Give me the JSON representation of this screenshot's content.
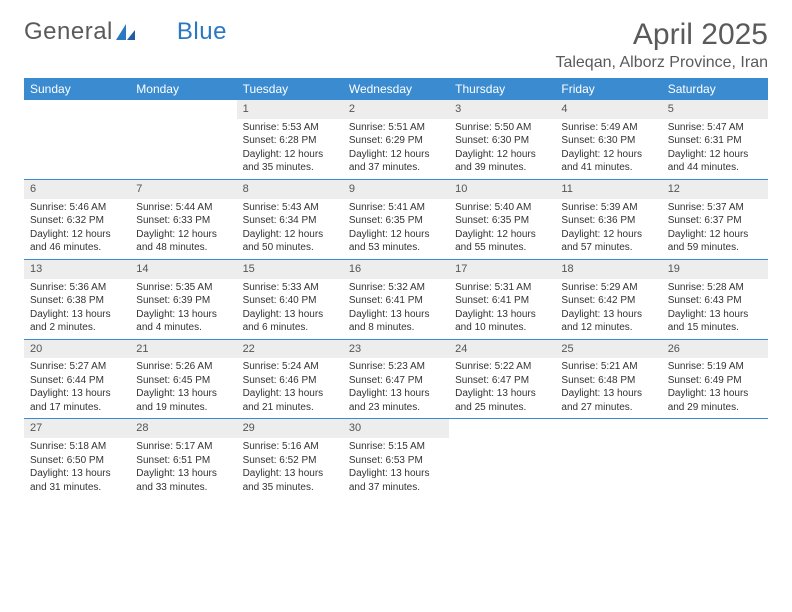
{
  "logo": {
    "text_general": "General",
    "text_blue": "Blue"
  },
  "title": "April 2025",
  "location": "Taleqan, Alborz Province, Iran",
  "colors": {
    "header_bg": "#3a8bd0",
    "header_text": "#ffffff",
    "daynum_bg": "#ededed",
    "row_border": "#3a8bd0",
    "body_text": "#333333",
    "title_text": "#5a5a5a",
    "logo_blue": "#2b78c2",
    "page_bg": "#ffffff"
  },
  "days_of_week": [
    "Sunday",
    "Monday",
    "Tuesday",
    "Wednesday",
    "Thursday",
    "Friday",
    "Saturday"
  ],
  "weeks": [
    [
      null,
      null,
      {
        "n": "1",
        "sr": "Sunrise: 5:53 AM",
        "ss": "Sunset: 6:28 PM",
        "dl1": "Daylight: 12 hours",
        "dl2": "and 35 minutes."
      },
      {
        "n": "2",
        "sr": "Sunrise: 5:51 AM",
        "ss": "Sunset: 6:29 PM",
        "dl1": "Daylight: 12 hours",
        "dl2": "and 37 minutes."
      },
      {
        "n": "3",
        "sr": "Sunrise: 5:50 AM",
        "ss": "Sunset: 6:30 PM",
        "dl1": "Daylight: 12 hours",
        "dl2": "and 39 minutes."
      },
      {
        "n": "4",
        "sr": "Sunrise: 5:49 AM",
        "ss": "Sunset: 6:30 PM",
        "dl1": "Daylight: 12 hours",
        "dl2": "and 41 minutes."
      },
      {
        "n": "5",
        "sr": "Sunrise: 5:47 AM",
        "ss": "Sunset: 6:31 PM",
        "dl1": "Daylight: 12 hours",
        "dl2": "and 44 minutes."
      }
    ],
    [
      {
        "n": "6",
        "sr": "Sunrise: 5:46 AM",
        "ss": "Sunset: 6:32 PM",
        "dl1": "Daylight: 12 hours",
        "dl2": "and 46 minutes."
      },
      {
        "n": "7",
        "sr": "Sunrise: 5:44 AM",
        "ss": "Sunset: 6:33 PM",
        "dl1": "Daylight: 12 hours",
        "dl2": "and 48 minutes."
      },
      {
        "n": "8",
        "sr": "Sunrise: 5:43 AM",
        "ss": "Sunset: 6:34 PM",
        "dl1": "Daylight: 12 hours",
        "dl2": "and 50 minutes."
      },
      {
        "n": "9",
        "sr": "Sunrise: 5:41 AM",
        "ss": "Sunset: 6:35 PM",
        "dl1": "Daylight: 12 hours",
        "dl2": "and 53 minutes."
      },
      {
        "n": "10",
        "sr": "Sunrise: 5:40 AM",
        "ss": "Sunset: 6:35 PM",
        "dl1": "Daylight: 12 hours",
        "dl2": "and 55 minutes."
      },
      {
        "n": "11",
        "sr": "Sunrise: 5:39 AM",
        "ss": "Sunset: 6:36 PM",
        "dl1": "Daylight: 12 hours",
        "dl2": "and 57 minutes."
      },
      {
        "n": "12",
        "sr": "Sunrise: 5:37 AM",
        "ss": "Sunset: 6:37 PM",
        "dl1": "Daylight: 12 hours",
        "dl2": "and 59 minutes."
      }
    ],
    [
      {
        "n": "13",
        "sr": "Sunrise: 5:36 AM",
        "ss": "Sunset: 6:38 PM",
        "dl1": "Daylight: 13 hours",
        "dl2": "and 2 minutes."
      },
      {
        "n": "14",
        "sr": "Sunrise: 5:35 AM",
        "ss": "Sunset: 6:39 PM",
        "dl1": "Daylight: 13 hours",
        "dl2": "and 4 minutes."
      },
      {
        "n": "15",
        "sr": "Sunrise: 5:33 AM",
        "ss": "Sunset: 6:40 PM",
        "dl1": "Daylight: 13 hours",
        "dl2": "and 6 minutes."
      },
      {
        "n": "16",
        "sr": "Sunrise: 5:32 AM",
        "ss": "Sunset: 6:41 PM",
        "dl1": "Daylight: 13 hours",
        "dl2": "and 8 minutes."
      },
      {
        "n": "17",
        "sr": "Sunrise: 5:31 AM",
        "ss": "Sunset: 6:41 PM",
        "dl1": "Daylight: 13 hours",
        "dl2": "and 10 minutes."
      },
      {
        "n": "18",
        "sr": "Sunrise: 5:29 AM",
        "ss": "Sunset: 6:42 PM",
        "dl1": "Daylight: 13 hours",
        "dl2": "and 12 minutes."
      },
      {
        "n": "19",
        "sr": "Sunrise: 5:28 AM",
        "ss": "Sunset: 6:43 PM",
        "dl1": "Daylight: 13 hours",
        "dl2": "and 15 minutes."
      }
    ],
    [
      {
        "n": "20",
        "sr": "Sunrise: 5:27 AM",
        "ss": "Sunset: 6:44 PM",
        "dl1": "Daylight: 13 hours",
        "dl2": "and 17 minutes."
      },
      {
        "n": "21",
        "sr": "Sunrise: 5:26 AM",
        "ss": "Sunset: 6:45 PM",
        "dl1": "Daylight: 13 hours",
        "dl2": "and 19 minutes."
      },
      {
        "n": "22",
        "sr": "Sunrise: 5:24 AM",
        "ss": "Sunset: 6:46 PM",
        "dl1": "Daylight: 13 hours",
        "dl2": "and 21 minutes."
      },
      {
        "n": "23",
        "sr": "Sunrise: 5:23 AM",
        "ss": "Sunset: 6:47 PM",
        "dl1": "Daylight: 13 hours",
        "dl2": "and 23 minutes."
      },
      {
        "n": "24",
        "sr": "Sunrise: 5:22 AM",
        "ss": "Sunset: 6:47 PM",
        "dl1": "Daylight: 13 hours",
        "dl2": "and 25 minutes."
      },
      {
        "n": "25",
        "sr": "Sunrise: 5:21 AM",
        "ss": "Sunset: 6:48 PM",
        "dl1": "Daylight: 13 hours",
        "dl2": "and 27 minutes."
      },
      {
        "n": "26",
        "sr": "Sunrise: 5:19 AM",
        "ss": "Sunset: 6:49 PM",
        "dl1": "Daylight: 13 hours",
        "dl2": "and 29 minutes."
      }
    ],
    [
      {
        "n": "27",
        "sr": "Sunrise: 5:18 AM",
        "ss": "Sunset: 6:50 PM",
        "dl1": "Daylight: 13 hours",
        "dl2": "and 31 minutes."
      },
      {
        "n": "28",
        "sr": "Sunrise: 5:17 AM",
        "ss": "Sunset: 6:51 PM",
        "dl1": "Daylight: 13 hours",
        "dl2": "and 33 minutes."
      },
      {
        "n": "29",
        "sr": "Sunrise: 5:16 AM",
        "ss": "Sunset: 6:52 PM",
        "dl1": "Daylight: 13 hours",
        "dl2": "and 35 minutes."
      },
      {
        "n": "30",
        "sr": "Sunrise: 5:15 AM",
        "ss": "Sunset: 6:53 PM",
        "dl1": "Daylight: 13 hours",
        "dl2": "and 37 minutes."
      },
      null,
      null,
      null
    ]
  ]
}
